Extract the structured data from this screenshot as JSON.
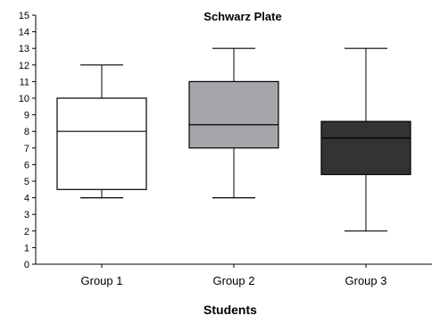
{
  "chart_data": {
    "type": "box",
    "title": "Schwarz Plate",
    "xlabel": "Students",
    "ylabel": "",
    "ylim": [
      0,
      15
    ],
    "yticks": [
      0,
      1,
      2,
      3,
      4,
      5,
      6,
      7,
      8,
      9,
      10,
      11,
      12,
      13,
      14,
      15
    ],
    "categories": [
      "Group 1",
      "Group 2",
      "Group 3"
    ],
    "boxes": [
      {
        "category": "Group 1",
        "min": 4,
        "q1": 4.5,
        "median": 8,
        "q3": 10,
        "max": 12,
        "fill": "#ffffff"
      },
      {
        "category": "Group 2",
        "min": 4,
        "q1": 7,
        "median": 8.4,
        "q3": 11,
        "max": 13,
        "fill": "#a6a6aa"
      },
      {
        "category": "Group 3",
        "min": 2,
        "q1": 5.4,
        "median": 7.6,
        "q3": 8.6,
        "max": 13,
        "fill": "#333333"
      }
    ],
    "grid": false,
    "legend": "none"
  },
  "colors": {
    "axis": "#000000",
    "box_stroke": "#000000",
    "median_on_dark": "#000000"
  }
}
